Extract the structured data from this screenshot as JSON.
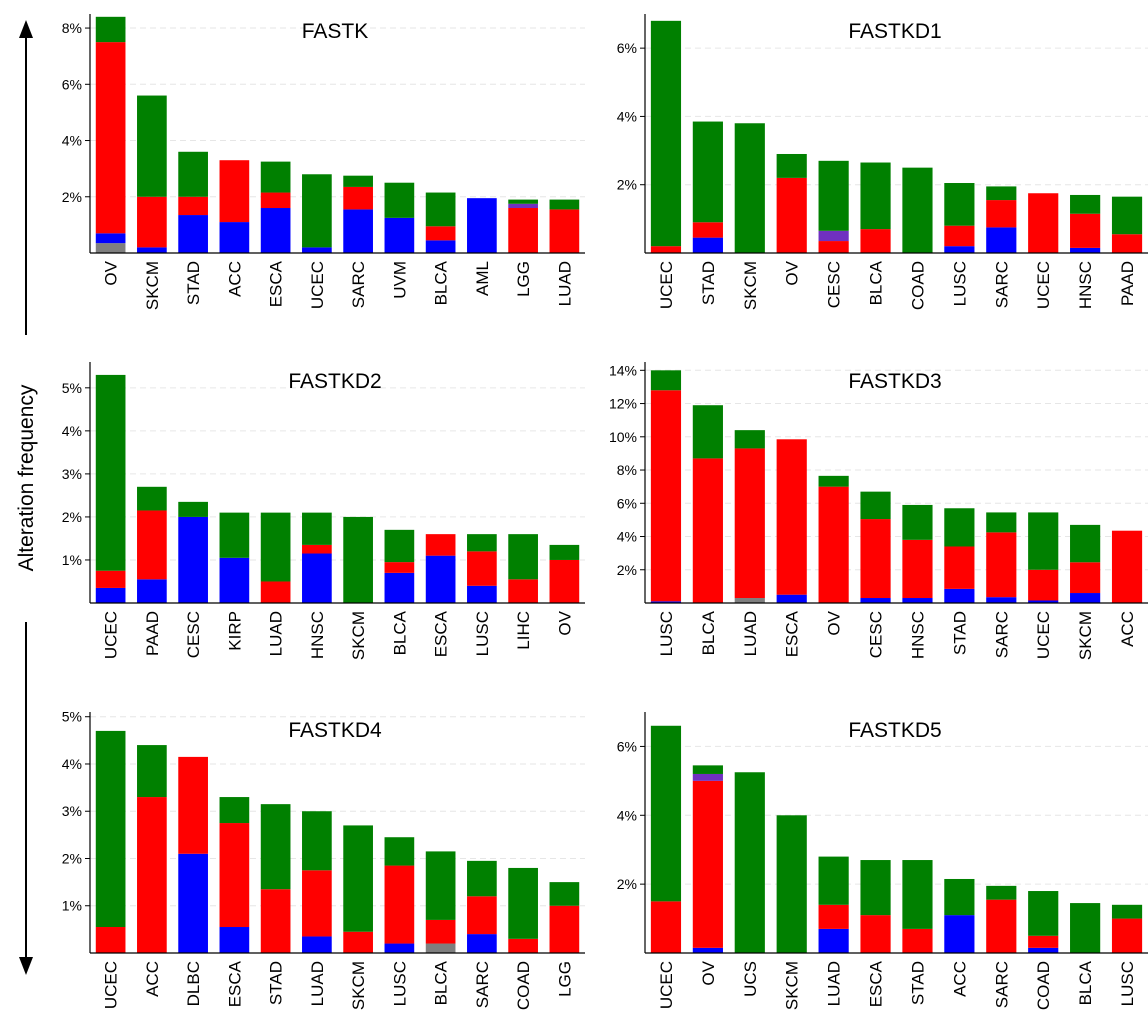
{
  "figure": {
    "ylabel": "Alteration frequency",
    "colors": {
      "red": "#ff0000",
      "green": "#008000",
      "blue": "#0000ff",
      "purple": "#7030c0",
      "grey": "#7f7f7f",
      "grid": "#e6e6e6",
      "axis": "#000000"
    }
  },
  "chart_data": [
    {
      "type": "bar",
      "title": "FASTK",
      "stacked": true,
      "ylim": [
        0,
        8.5
      ],
      "yticks": [
        2,
        4,
        6,
        8
      ],
      "tick_suffix": "%",
      "grid": true,
      "categories": [
        "OV",
        "SKCM",
        "STAD",
        "ACC",
        "ESCA",
        "UCEC",
        "SARC",
        "UVM",
        "BLCA",
        "AML",
        "LGG",
        "LUAD"
      ],
      "series": [
        {
          "color": "grey",
          "values": [
            0.35,
            0,
            0,
            0,
            0,
            0,
            0,
            0,
            0,
            0,
            0,
            0
          ]
        },
        {
          "color": "blue",
          "values": [
            0.35,
            0.2,
            1.35,
            1.1,
            1.6,
            0.2,
            1.55,
            1.25,
            0.45,
            1.95,
            0,
            0
          ]
        },
        {
          "color": "red",
          "values": [
            6.8,
            1.8,
            0.65,
            2.2,
            0.55,
            0,
            0.8,
            0,
            0.5,
            0,
            1.6,
            1.55
          ]
        },
        {
          "color": "purple",
          "values": [
            0,
            0,
            0,
            0,
            0,
            0,
            0,
            0,
            0,
            0,
            0.15,
            0
          ]
        },
        {
          "color": "green",
          "values": [
            0.9,
            3.6,
            1.6,
            0,
            1.1,
            2.6,
            0.4,
            1.25,
            1.2,
            0,
            0.15,
            0.35
          ]
        }
      ]
    },
    {
      "type": "bar",
      "title": "FASTKD1",
      "stacked": true,
      "ylim": [
        0,
        7
      ],
      "yticks": [
        2,
        4,
        6
      ],
      "tick_suffix": "%",
      "grid": true,
      "categories": [
        "UCEC",
        "STAD",
        "SKCM",
        "OV",
        "CESC",
        "BLCA",
        "COAD",
        "LUSC",
        "SARC",
        "UCEC",
        "HNSC",
        "PAAD"
      ],
      "series": [
        {
          "color": "grey",
          "values": [
            0,
            0,
            0,
            0,
            0,
            0,
            0,
            0,
            0,
            0,
            0,
            0
          ]
        },
        {
          "color": "blue",
          "values": [
            0,
            0.45,
            0,
            0,
            0,
            0,
            0,
            0.2,
            0.75,
            0,
            0.15,
            0
          ]
        },
        {
          "color": "red",
          "values": [
            0.2,
            0.45,
            0,
            2.2,
            0.35,
            0.7,
            0,
            0.6,
            0.8,
            1.75,
            1.0,
            0.55
          ]
        },
        {
          "color": "purple",
          "values": [
            0,
            0,
            0,
            0,
            0.3,
            0,
            0,
            0,
            0,
            0,
            0,
            0
          ]
        },
        {
          "color": "green",
          "values": [
            6.6,
            2.95,
            3.8,
            0.7,
            2.05,
            1.95,
            2.5,
            1.25,
            0.4,
            0,
            0.55,
            1.1
          ]
        }
      ]
    },
    {
      "type": "bar",
      "title": "FASTKD2",
      "stacked": true,
      "ylim": [
        0,
        5.6
      ],
      "yticks": [
        1,
        2,
        3,
        4,
        5
      ],
      "tick_suffix": "%",
      "grid": true,
      "categories": [
        "UCEC",
        "PAAD",
        "CESC",
        "KIRP",
        "LUAD",
        "HNSC",
        "SKCM",
        "BLCA",
        "ESCA",
        "LUSC",
        "LIHC",
        "OV"
      ],
      "series": [
        {
          "color": "grey",
          "values": [
            0,
            0,
            0,
            0,
            0,
            0,
            0,
            0,
            0,
            0,
            0,
            0
          ]
        },
        {
          "color": "blue",
          "values": [
            0.35,
            0.55,
            2.0,
            1.05,
            0,
            1.15,
            0,
            0.7,
            1.1,
            0.4,
            0,
            0
          ]
        },
        {
          "color": "red",
          "values": [
            0.4,
            1.6,
            0,
            0,
            0.5,
            0.2,
            0,
            0.25,
            0.5,
            0.8,
            0.55,
            1.0
          ]
        },
        {
          "color": "purple",
          "values": [
            0,
            0,
            0,
            0,
            0,
            0,
            0,
            0,
            0,
            0,
            0,
            0
          ]
        },
        {
          "color": "green",
          "values": [
            4.55,
            0.55,
            0.35,
            1.05,
            1.6,
            0.75,
            2.0,
            0.75,
            0,
            0.4,
            1.05,
            0.35
          ]
        }
      ]
    },
    {
      "type": "bar",
      "title": "FASTKD3",
      "stacked": true,
      "ylim": [
        0,
        14.5
      ],
      "yticks": [
        2,
        4,
        6,
        8,
        10,
        12,
        14
      ],
      "tick_suffix": "%",
      "grid": true,
      "categories": [
        "LUSC",
        "BLCA",
        "LUAD",
        "ESCA",
        "OV",
        "CESC",
        "HNSC",
        "STAD",
        "SARC",
        "UCEC",
        "SKCM",
        "ACC"
      ],
      "series": [
        {
          "color": "grey",
          "values": [
            0,
            0,
            0.3,
            0,
            0,
            0,
            0,
            0,
            0,
            0,
            0,
            0
          ]
        },
        {
          "color": "blue",
          "values": [
            0.1,
            0,
            0,
            0.5,
            0,
            0.3,
            0.3,
            0.85,
            0.35,
            0.15,
            0.6,
            0
          ]
        },
        {
          "color": "red",
          "values": [
            12.7,
            8.7,
            9.0,
            9.35,
            7.0,
            4.75,
            3.5,
            2.55,
            3.9,
            1.85,
            1.85,
            4.35
          ]
        },
        {
          "color": "purple",
          "values": [
            0,
            0,
            0,
            0,
            0,
            0,
            0,
            0,
            0,
            0,
            0,
            0
          ]
        },
        {
          "color": "green",
          "values": [
            1.2,
            3.2,
            1.1,
            0,
            0.65,
            1.65,
            2.1,
            2.3,
            1.2,
            3.45,
            2.25,
            0
          ]
        }
      ]
    },
    {
      "type": "bar",
      "title": "FASTKD4",
      "stacked": true,
      "ylim": [
        0,
        5.1
      ],
      "yticks": [
        1,
        2,
        3,
        4,
        5
      ],
      "tick_suffix": "%",
      "grid": true,
      "categories": [
        "UCEC",
        "ACC",
        "DLBC",
        "ESCA",
        "STAD",
        "LUAD",
        "SKCM",
        "LUSC",
        "BLCA",
        "SARC",
        "COAD",
        "LGG"
      ],
      "series": [
        {
          "color": "grey",
          "values": [
            0,
            0,
            0,
            0,
            0,
            0,
            0,
            0,
            0.2,
            0,
            0,
            0
          ]
        },
        {
          "color": "blue",
          "values": [
            0,
            0,
            2.1,
            0.55,
            0,
            0.35,
            0,
            0.2,
            0,
            0.4,
            0,
            0
          ]
        },
        {
          "color": "red",
          "values": [
            0.55,
            3.3,
            2.05,
            2.2,
            1.35,
            1.4,
            0.45,
            1.65,
            0.5,
            0.8,
            0.3,
            1.0
          ]
        },
        {
          "color": "purple",
          "values": [
            0,
            0,
            0,
            0,
            0,
            0,
            0,
            0,
            0,
            0,
            0,
            0
          ]
        },
        {
          "color": "green",
          "values": [
            4.15,
            1.1,
            0,
            0.55,
            1.8,
            1.25,
            2.25,
            0.6,
            1.45,
            0.75,
            1.5,
            0.5
          ]
        }
      ]
    },
    {
      "type": "bar",
      "title": "FASTKD5",
      "stacked": true,
      "ylim": [
        0,
        7
      ],
      "yticks": [
        2,
        4,
        6
      ],
      "tick_suffix": "%",
      "grid": true,
      "categories": [
        "UCEC",
        "OV",
        "UCS",
        "SKCM",
        "LUAD",
        "ESCA",
        "STAD",
        "ACC",
        "SARC",
        "COAD",
        "BLCA",
        "LUSC"
      ],
      "series": [
        {
          "color": "grey",
          "values": [
            0,
            0,
            0,
            0,
            0,
            0,
            0,
            0,
            0,
            0,
            0,
            0
          ]
        },
        {
          "color": "blue",
          "values": [
            0,
            0.15,
            0,
            0,
            0.7,
            0,
            0,
            1.1,
            0,
            0.15,
            0,
            0
          ]
        },
        {
          "color": "red",
          "values": [
            1.5,
            4.85,
            0,
            0,
            0.7,
            1.1,
            0.7,
            0,
            1.55,
            0.35,
            0,
            1.0
          ]
        },
        {
          "color": "purple",
          "values": [
            0,
            0.2,
            0,
            0,
            0,
            0,
            0,
            0,
            0,
            0,
            0,
            0
          ]
        },
        {
          "color": "green",
          "values": [
            5.1,
            0.25,
            5.25,
            4.0,
            1.4,
            1.6,
            2.0,
            1.05,
            0.4,
            1.3,
            1.45,
            0.4
          ]
        }
      ]
    }
  ]
}
